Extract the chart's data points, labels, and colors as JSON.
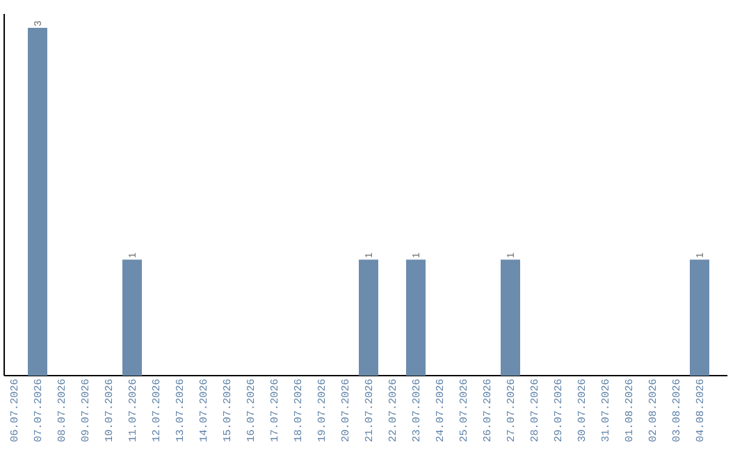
{
  "chart_data": {
    "type": "bar",
    "categories": [
      "06.07.2026",
      "07.07.2026",
      "08.07.2026",
      "09.07.2026",
      "10.07.2026",
      "11.07.2026",
      "12.07.2026",
      "13.07.2026",
      "14.07.2026",
      "15.07.2026",
      "16.07.2026",
      "17.07.2026",
      "18.07.2026",
      "19.07.2026",
      "20.07.2026",
      "21.07.2026",
      "22.07.2026",
      "23.07.2026",
      "24.07.2026",
      "25.07.2026",
      "26.07.2026",
      "27.07.2026",
      "28.07.2026",
      "29.07.2026",
      "30.07.2026",
      "31.07.2026",
      "01.08.2026",
      "02.08.2026",
      "03.08.2026",
      "04.08.2026"
    ],
    "values": [
      0,
      3,
      0,
      0,
      0,
      1,
      0,
      0,
      0,
      0,
      0,
      0,
      0,
      0,
      0,
      1,
      0,
      1,
      0,
      0,
      0,
      1,
      0,
      0,
      0,
      0,
      0,
      0,
      0,
      1
    ],
    "value_labels": [
      null,
      "3",
      null,
      null,
      null,
      "1",
      null,
      null,
      null,
      null,
      null,
      null,
      null,
      null,
      null,
      "1",
      null,
      "1",
      null,
      null,
      null,
      "1",
      null,
      null,
      null,
      null,
      null,
      null,
      null,
      "1"
    ],
    "color": "#6b8cac"
  }
}
